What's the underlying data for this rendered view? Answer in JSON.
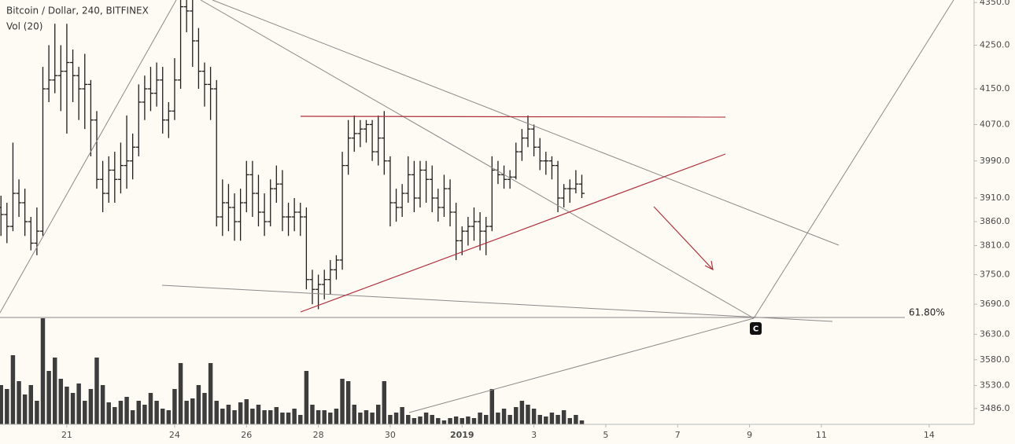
{
  "chart_data": {
    "type": "ohlc",
    "title": "Bitcoin / Dollar, 240, BITFINEX",
    "subtitle": "Vol (20)",
    "log": true,
    "color": "#1e1e1e",
    "volume_color": "#3d3d3d",
    "x": [
      19.167,
      19.333,
      19.5,
      19.667,
      19.833,
      20,
      20.167,
      20.333,
      20.5,
      20.667,
      20.833,
      21,
      21.167,
      21.333,
      21.5,
      21.667,
      21.833,
      22,
      22.167,
      22.333,
      22.5,
      22.667,
      22.833,
      23,
      23.167,
      23.333,
      23.5,
      23.667,
      23.833,
      24,
      24.167,
      24.333,
      24.5,
      24.667,
      24.833,
      25,
      25.167,
      25.333,
      25.5,
      25.667,
      25.833,
      26,
      26.167,
      26.333,
      26.5,
      26.667,
      26.833,
      27,
      27.167,
      27.333,
      27.5,
      27.667,
      27.833,
      28,
      28.167,
      28.333,
      28.5,
      28.667,
      28.833,
      29,
      29.167,
      29.333,
      29.5,
      29.667,
      29.833,
      30,
      30.167,
      30.333,
      30.5,
      30.667,
      30.833,
      31,
      31.167,
      31.333,
      31.5,
      31.667,
      31.833,
      32,
      32.167,
      32.333,
      32.5,
      32.667,
      32.833,
      33,
      33.167,
      33.333,
      33.5,
      33.667,
      33.833,
      34,
      34.167,
      34.333,
      34.5,
      34.667,
      34.833,
      35,
      35.167,
      35.333
    ],
    "open": [
      3890,
      3875,
      3850,
      3920,
      3900,
      3860,
      3815,
      3840,
      4150,
      4170,
      4180,
      4190,
      4210,
      4180,
      4150,
      4160,
      4080,
      3950,
      3920,
      3970,
      3950,
      3980,
      3990,
      4020,
      4120,
      4150,
      4140,
      4170,
      4080,
      4100,
      4170,
      4340,
      4330,
      4260,
      4190,
      4160,
      4150,
      3870,
      3900,
      3890,
      3860,
      3900,
      3960,
      3920,
      3880,
      3860,
      3930,
      3940,
      3870,
      3870,
      3880,
      3870,
      3740,
      3720,
      3730,
      3740,
      3760,
      3780,
      3980,
      4040,
      4050,
      4060,
      4070,
      4010,
      4040,
      3990,
      3900,
      3890,
      3920,
      3960,
      3910,
      3970,
      3950,
      3910,
      3890,
      3930,
      3880,
      3820,
      3840,
      3850,
      3860,
      3840,
      3850,
      3970,
      3960,
      3950,
      3955,
      4010,
      4040,
      4060,
      4020,
      3990,
      3990,
      3980,
      3910,
      3930,
      3930,
      3940
    ],
    "high": [
      3915,
      3900,
      4030,
      3950,
      3930,
      3870,
      3890,
      4200,
      4250,
      4300,
      4250,
      4300,
      4240,
      4200,
      4230,
      4170,
      4100,
      3990,
      4000,
      4010,
      4030,
      4090,
      4050,
      4160,
      4180,
      4200,
      4210,
      4200,
      4120,
      4220,
      4380,
      4380,
      4360,
      4290,
      4210,
      4200,
      4170,
      3950,
      3940,
      3920,
      3930,
      3990,
      3990,
      3960,
      3920,
      3950,
      3980,
      3970,
      3900,
      3910,
      3900,
      3890,
      3760,
      3750,
      3760,
      3780,
      3790,
      4010,
      4080,
      4090,
      4080,
      4080,
      4080,
      4090,
      4100,
      4000,
      3930,
      3940,
      4000,
      3990,
      3990,
      3990,
      3980,
      3930,
      3960,
      3950,
      3900,
      3850,
      3870,
      3890,
      3880,
      3870,
      4000,
      3990,
      3980,
      3970,
      4030,
      4060,
      4090,
      4070,
      4040,
      4010,
      4000,
      3990,
      3940,
      3950,
      3970,
      3960
    ],
    "low": [
      3830,
      3815,
      3840,
      3870,
      3830,
      3800,
      3790,
      3830,
      4120,
      4140,
      4100,
      4050,
      4120,
      4080,
      4060,
      4000,
      3930,
      3880,
      3900,
      3900,
      3920,
      3930,
      3950,
      4000,
      4080,
      4100,
      4110,
      4050,
      4040,
      4080,
      4150,
      4280,
      4200,
      4150,
      4110,
      4080,
      3850,
      3830,
      3840,
      3820,
      3820,
      3880,
      3870,
      3850,
      3830,
      3850,
      3900,
      3840,
      3830,
      3840,
      3830,
      3720,
      3690,
      3680,
      3700,
      3710,
      3740,
      3760,
      3960,
      4010,
      4020,
      4030,
      3990,
      3980,
      3960,
      3850,
      3860,
      3870,
      3900,
      3880,
      3890,
      3900,
      3880,
      3860,
      3870,
      3850,
      3780,
      3790,
      3810,
      3820,
      3800,
      3790,
      3840,
      3940,
      3930,
      3930,
      3950,
      3990,
      4020,
      4000,
      3970,
      3960,
      3950,
      3880,
      3890,
      3900,
      3920,
      3910
    ],
    "close": [
      3875,
      3850,
      3920,
      3900,
      3860,
      3815,
      3840,
      4150,
      4170,
      4180,
      4190,
      4210,
      4180,
      4150,
      4160,
      4080,
      3950,
      3920,
      3970,
      3950,
      3980,
      3990,
      4020,
      4120,
      4150,
      4140,
      4170,
      4080,
      4100,
      4170,
      4340,
      4330,
      4260,
      4190,
      4160,
      4150,
      3870,
      3900,
      3890,
      3860,
      3900,
      3960,
      3920,
      3880,
      3860,
      3930,
      3940,
      3870,
      3870,
      3880,
      3870,
      3740,
      3720,
      3730,
      3740,
      3760,
      3780,
      3980,
      4040,
      4050,
      4060,
      4070,
      4010,
      4040,
      3990,
      3900,
      3890,
      3920,
      3960,
      3910,
      3970,
      3950,
      3910,
      3890,
      3930,
      3880,
      3820,
      3840,
      3850,
      3860,
      3840,
      3850,
      3970,
      3960,
      3950,
      3955,
      4010,
      4040,
      4060,
      4020,
      3990,
      3990,
      3980,
      3910,
      3930,
      3930,
      3940,
      3920
    ],
    "volume": [
      50,
      45,
      88,
      55,
      38,
      50,
      30,
      135,
      68,
      85,
      58,
      48,
      40,
      52,
      30,
      45,
      85,
      50,
      28,
      22,
      30,
      35,
      18,
      30,
      25,
      40,
      30,
      20,
      18,
      45,
      78,
      30,
      33,
      50,
      40,
      78,
      30,
      20,
      25,
      18,
      28,
      32,
      20,
      25,
      18,
      18,
      22,
      15,
      15,
      20,
      12,
      68,
      25,
      18,
      18,
      15,
      20,
      58,
      55,
      25,
      15,
      18,
      15,
      25,
      55,
      12,
      15,
      22,
      12,
      8,
      10,
      15,
      12,
      8,
      5,
      8,
      10,
      8,
      10,
      8,
      15,
      12,
      45,
      15,
      20,
      12,
      22,
      30,
      25,
      20,
      12,
      10,
      15,
      12,
      18,
      8,
      12,
      5
    ],
    "xlim": [
      19.14,
      46.25
    ],
    "xticks": [
      21,
      24,
      26,
      28,
      30,
      {
        "value": 32,
        "label": "2019"
      },
      {
        "value": 34,
        "label": "3"
      },
      {
        "value": 36,
        "label": "5"
      },
      {
        "value": 38,
        "label": "7"
      },
      {
        "value": 40,
        "label": "9"
      },
      {
        "value": 42,
        "label": "11"
      },
      {
        "value": 45,
        "label": "14"
      }
    ],
    "ylim": [
      3456,
      4356
    ],
    "yticks": [
      {
        "value": 4350,
        "label": "4350.0"
      },
      {
        "value": 4250,
        "label": "4250.0"
      },
      {
        "value": 4150,
        "label": "4150.0"
      },
      {
        "value": 4070,
        "label": "4070.0"
      },
      {
        "value": 3990,
        "label": "3990.0"
      },
      {
        "value": 3910,
        "label": "3910.0"
      },
      {
        "value": 3860,
        "label": "3860.0"
      },
      {
        "value": 3810,
        "label": "3810.0"
      },
      {
        "value": 3750,
        "label": "3750.0"
      },
      {
        "value": 3690,
        "label": "3690.0"
      },
      {
        "value": 3630,
        "label": "3630.0"
      },
      {
        "value": 3580,
        "label": "3580.0"
      },
      {
        "value": 3530,
        "label": "3530.0"
      },
      {
        "value": 3486,
        "label": "3486.0"
      }
    ],
    "y2lim": [
      0,
      140
    ],
    "annotations": [
      "61.80%",
      "C"
    ]
  }
}
